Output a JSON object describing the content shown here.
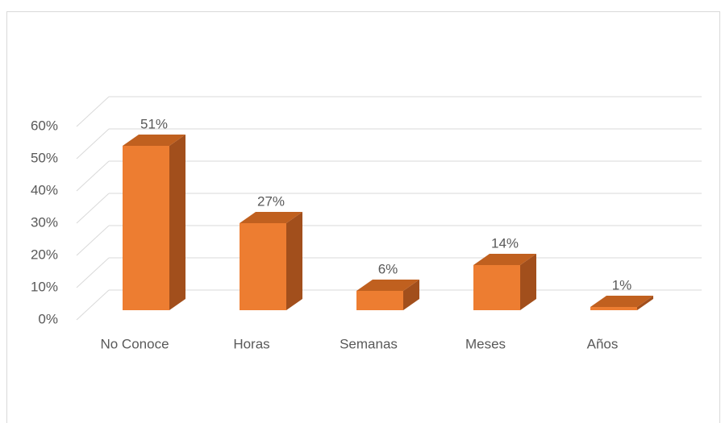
{
  "chart_data": {
    "type": "bar3d",
    "categories": [
      "No Conoce",
      "Horas",
      "Semanas",
      "Meses",
      "Años"
    ],
    "values": [
      51,
      27,
      6,
      14,
      1
    ],
    "value_labels": [
      "51%",
      "27%",
      "6%",
      "14%",
      "1%"
    ],
    "color": "#ed7d31",
    "ylim": [
      0,
      60
    ],
    "yticks": [
      {
        "value": 0,
        "label": "0%"
      },
      {
        "value": 10,
        "label": "10%"
      },
      {
        "value": 20,
        "label": "20%"
      },
      {
        "value": 30,
        "label": "30%"
      },
      {
        "value": 40,
        "label": "40%"
      },
      {
        "value": 50,
        "label": "50%"
      },
      {
        "value": 60,
        "label": "60%"
      }
    ],
    "grid": true
  }
}
